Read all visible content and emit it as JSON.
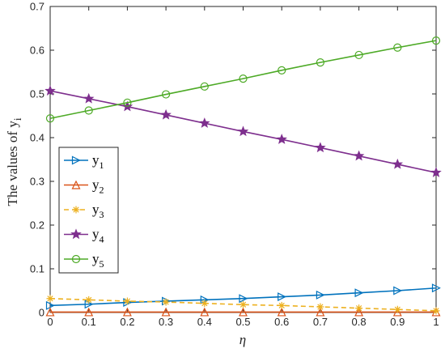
{
  "chart_data": {
    "type": "line",
    "title": "",
    "xlabel": "η",
    "ylabel": "The values of y",
    "ylabel_subscript": "i",
    "xlim": [
      0,
      1
    ],
    "ylim": [
      0,
      0.7
    ],
    "x_ticks": [
      "0",
      "0.1",
      "0.2",
      "0.3",
      "0.4",
      "0.5",
      "0.6",
      "0.7",
      "0.8",
      "0.9",
      "1"
    ],
    "y_ticks": [
      "0",
      "0.1",
      "0.2",
      "0.3",
      "0.4",
      "0.5",
      "0.6",
      "0.7"
    ],
    "grid": false,
    "legend_position": "left",
    "x": [
      0,
      0.1,
      0.2,
      0.3,
      0.4,
      0.5,
      0.6,
      0.7,
      0.8,
      0.9,
      1
    ],
    "series": [
      {
        "name": "y",
        "subscript": "1",
        "color": "#0072BD",
        "marker": "triangle-right",
        "dash": false,
        "values": [
          0.016,
          0.019,
          0.023,
          0.026,
          0.029,
          0.032,
          0.036,
          0.04,
          0.045,
          0.05,
          0.056
        ]
      },
      {
        "name": "y",
        "subscript": "2",
        "color": "#D95319",
        "marker": "triangle-up",
        "dash": false,
        "values": [
          0.001,
          0.001,
          0.001,
          0.001,
          0.001,
          0.001,
          0.001,
          0.001,
          0.001,
          0.001,
          0.001
        ]
      },
      {
        "name": "y",
        "subscript": "3",
        "color": "#EDB120",
        "marker": "asterisk",
        "dash": true,
        "values": [
          0.032,
          0.029,
          0.026,
          0.024,
          0.021,
          0.018,
          0.016,
          0.013,
          0.01,
          0.007,
          0.004
        ]
      },
      {
        "name": "y",
        "subscript": "4",
        "color": "#7E2F8E",
        "marker": "star",
        "dash": false,
        "values": [
          0.507,
          0.489,
          0.471,
          0.452,
          0.433,
          0.414,
          0.396,
          0.377,
          0.358,
          0.339,
          0.32
        ]
      },
      {
        "name": "y",
        "subscript": "5",
        "color": "#4DAA26",
        "marker": "circle",
        "dash": false,
        "values": [
          0.444,
          0.462,
          0.48,
          0.499,
          0.517,
          0.535,
          0.554,
          0.572,
          0.589,
          0.606,
          0.622
        ]
      }
    ]
  }
}
